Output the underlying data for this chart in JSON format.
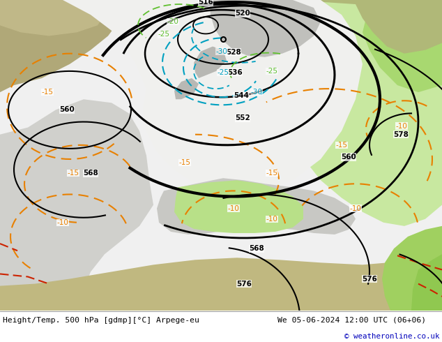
{
  "title_left": "Height/Temp. 500 hPa [gdmp][°C] Arpege-eu",
  "title_right": "We 05-06-2024 12:00 UTC (06+06)",
  "copyright": "© weatheronline.co.uk",
  "bg_land_olive": "#b8b890",
  "bg_sea_gray": "#c8c8c8",
  "bg_white_region": "#f0f0f0",
  "bg_green_region": "#b8e890",
  "bg_dark_green": "#90d060",
  "bg_gray_left": "#c0c0c0",
  "bg_gray_ne": "#c8c8c8",
  "orange_color": "#e88000",
  "red_color": "#cc2200",
  "black_color": "#000000",
  "cyan_color": "#00a0c0",
  "green_label_color": "#60c030",
  "footer_bg": "#ffffff",
  "footer_sep_color": "#888888"
}
